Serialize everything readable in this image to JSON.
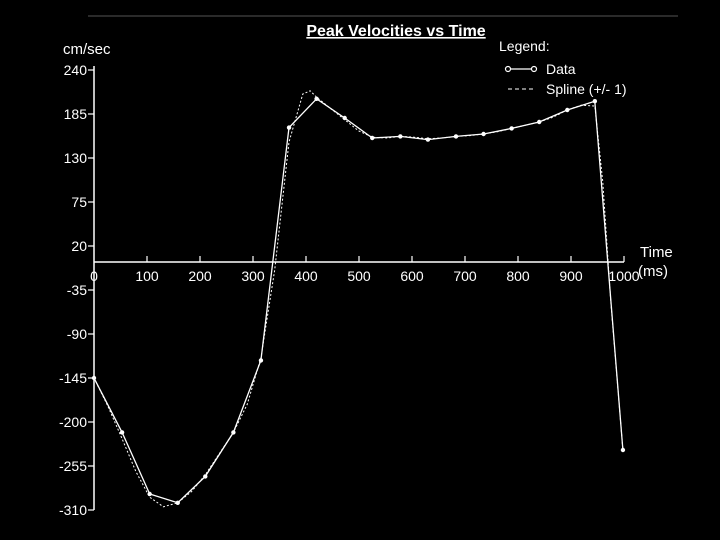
{
  "chart_data": {
    "type": "line",
    "title": "Peak Velocities vs Time",
    "ylabel": "cm/sec",
    "xlabel_line1": "Time",
    "xlabel_line2": "(ms)",
    "xlim": [
      0,
      1000
    ],
    "ylim": [
      -310,
      240
    ],
    "x_ticks": [
      0,
      100,
      200,
      300,
      400,
      500,
      600,
      700,
      800,
      900,
      1000
    ],
    "x_tick_labels": [
      "0",
      "100",
      "200",
      "300",
      "400",
      "500",
      "600",
      "700",
      "800",
      "900",
      "1000"
    ],
    "y_ticks": [
      240,
      185,
      130,
      75,
      20,
      -35,
      -90,
      -145,
      -200,
      -255,
      -310
    ],
    "y_tick_labels": [
      "240",
      "185",
      "130",
      "75",
      "20",
      "-35",
      "-90",
      "-145",
      "-200",
      "-255",
      "-310"
    ],
    "grid": false,
    "legend": {
      "position": "top-right",
      "title": "Legend:",
      "entries": [
        {
          "name": "Data",
          "style": "solid-with-markers"
        },
        {
          "name": "Spline (+/- 1)",
          "style": "dashed"
        }
      ]
    },
    "series": [
      {
        "name": "Data",
        "x": [
          0,
          53,
          105,
          158,
          210,
          263,
          315,
          368,
          420,
          473,
          525,
          578,
          630,
          683,
          735,
          788,
          840,
          893,
          945,
          998
        ],
        "y": [
          -145,
          -213,
          -290,
          -301,
          -268,
          -213,
          -123,
          168,
          204,
          180,
          155,
          157,
          153,
          157,
          160,
          167,
          175,
          190,
          201,
          -235
        ]
      },
      {
        "name": "Spline (+/- 1)",
        "x": [
          0,
          26,
          53,
          79,
          105,
          131,
          158,
          184,
          210,
          236,
          263,
          289,
          315,
          341,
          368,
          394,
          408,
          420,
          446,
          473,
          499,
          525,
          552,
          578,
          604,
          630,
          656,
          683,
          709,
          735,
          762,
          788,
          814,
          840,
          866,
          893,
          919,
          945,
          960,
          975,
          998
        ],
        "y": [
          -145,
          -180,
          -221,
          -262,
          -294,
          -306,
          -301,
          -287,
          -266,
          -240,
          -213,
          -178,
          -120,
          -10,
          150,
          210,
          214,
          206,
          192,
          178,
          164,
          156,
          155,
          157,
          156,
          154,
          155,
          157,
          158,
          160,
          163,
          167,
          171,
          175,
          181,
          190,
          196,
          195,
          100,
          -50,
          -235
        ]
      }
    ]
  }
}
